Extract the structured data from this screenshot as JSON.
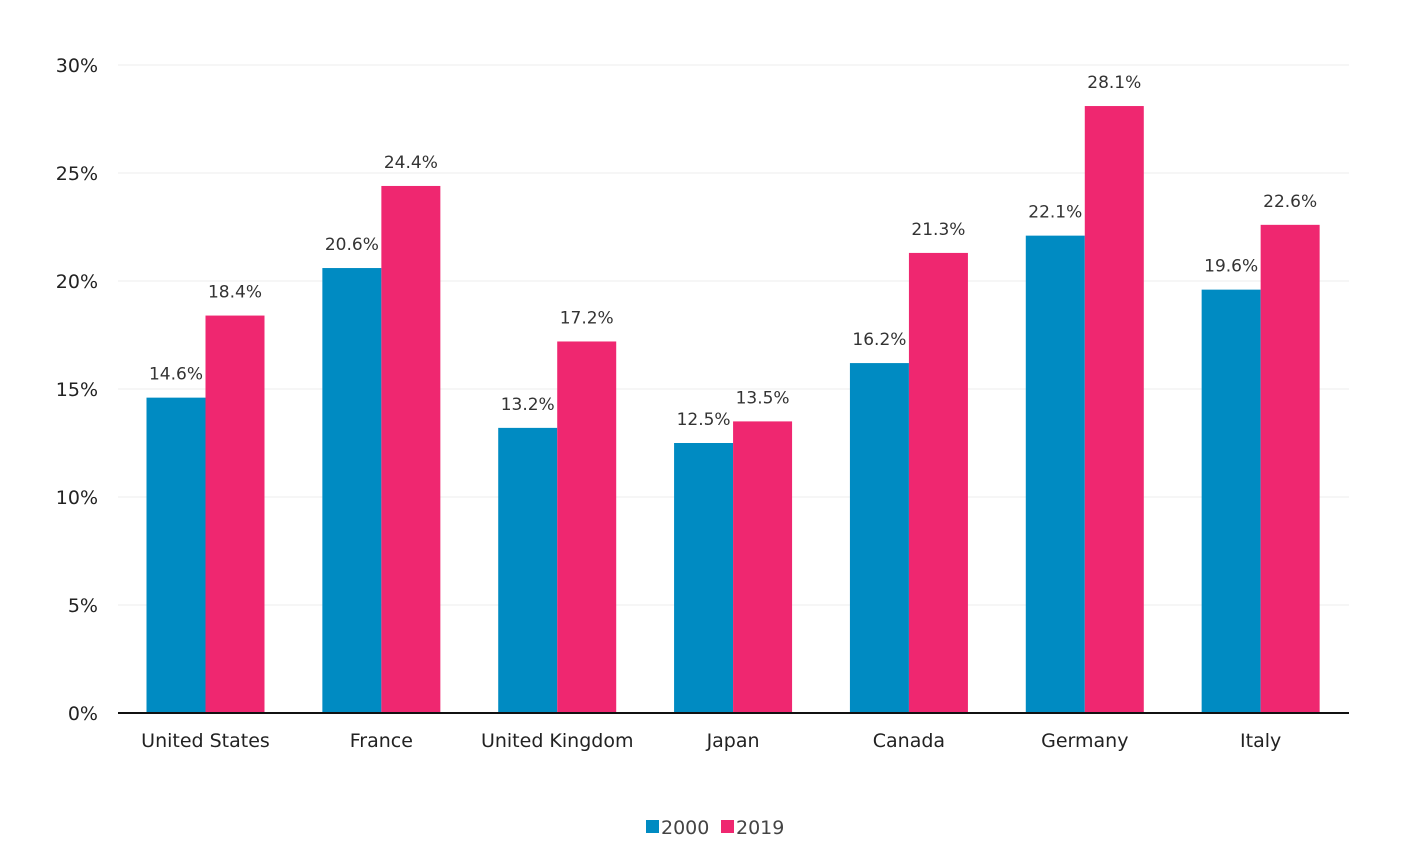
{
  "chart_data": {
    "type": "bar",
    "title": "",
    "xlabel": "",
    "ylabel": "",
    "ylim": [
      0,
      30
    ],
    "yticks": [
      0,
      5,
      10,
      15,
      20,
      25,
      30
    ],
    "ytick_labels": [
      "0%",
      "5%",
      "10%",
      "15%",
      "20%",
      "25%",
      "30%"
    ],
    "categories": [
      "United States",
      "France",
      "United Kingdom",
      "Japan",
      "Canada",
      "Germany",
      "Italy"
    ],
    "series": [
      {
        "name": "2000",
        "color": "#008bc2",
        "values": [
          14.6,
          20.6,
          13.2,
          12.5,
          16.2,
          22.1,
          19.6
        ],
        "labels": [
          "14.6%",
          "20.6%",
          "13.2%",
          "12.5%",
          "16.2%",
          "22.1%",
          "19.6%"
        ]
      },
      {
        "name": "2019",
        "color": "#ef2770",
        "values": [
          18.4,
          24.4,
          17.2,
          13.5,
          21.3,
          28.1,
          22.6
        ],
        "labels": [
          "18.4%",
          "24.4%",
          "17.2%",
          "13.5%",
          "21.3%",
          "28.1%",
          "22.6%"
        ]
      }
    ],
    "grid": true,
    "legend_position": "bottom-center"
  }
}
